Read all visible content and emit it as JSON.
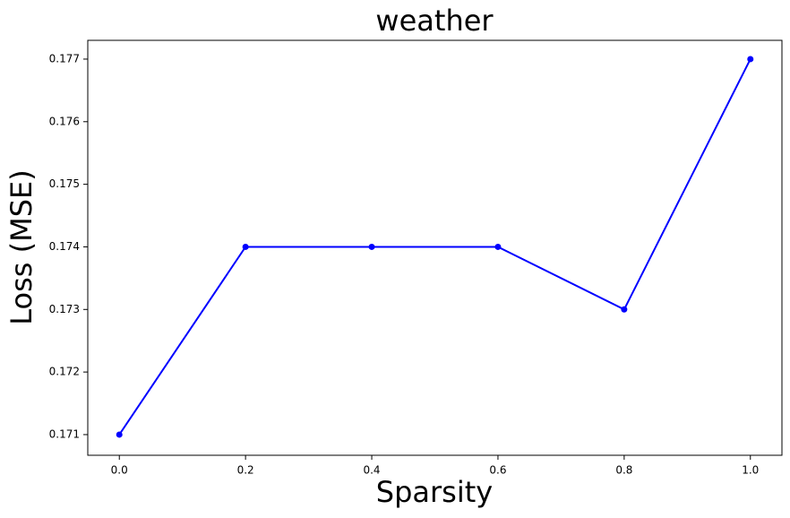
{
  "chart_data": {
    "type": "line",
    "title": "weather",
    "x_label": "Sparsity",
    "y_label": "Loss (MSE)",
    "x": [
      0,
      0.2,
      0.4,
      0.6,
      0.8,
      1.0
    ],
    "series": [
      {
        "name": "weather",
        "color": "#0000ff",
        "values": [
          0.171,
          0.174,
          0.174,
          0.174,
          0.173,
          0.177
        ]
      }
    ],
    "xlim": [
      -0.05,
      1.05
    ],
    "xticks": [
      {
        "value": 0,
        "label": "0.0"
      },
      0.2,
      0.4,
      0.6,
      0.8,
      {
        "value": 1,
        "label": "1.0"
      }
    ],
    "ylim": [
      0.17067,
      0.1773
    ],
    "yticks": [
      0.171,
      0.172,
      0.173,
      0.174,
      0.175,
      0.176,
      0.177
    ],
    "grid": false
  }
}
